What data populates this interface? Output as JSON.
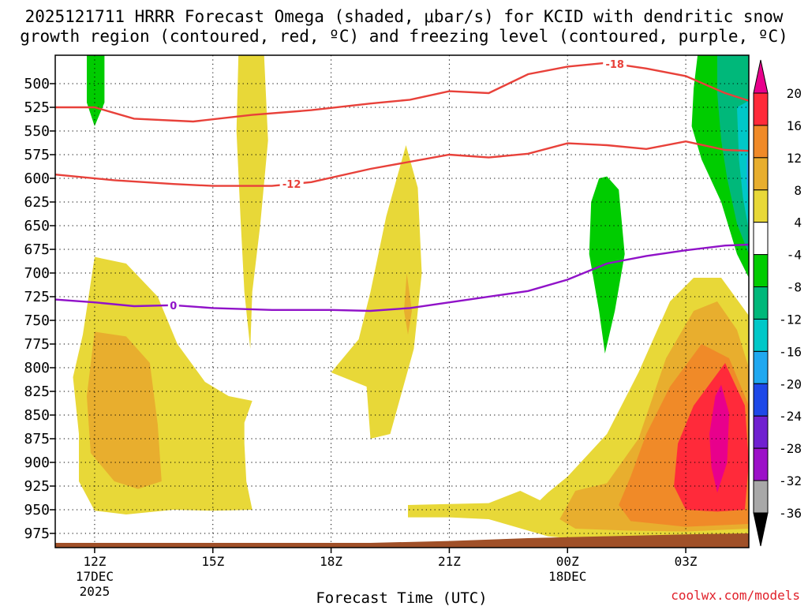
{
  "title_line1": "2025121711 HRRR Forecast Omega (shaded, μbar/s) for KCID with dendritic snow",
  "title_line2": "growth region (contoured, red, ºC) and freezing level (contoured, purple, ºC)",
  "watermark": "coolwx.com/models",
  "chart_data": {
    "type": "heatmap",
    "title": "2025121711 HRRR Forecast Omega (shaded, μbar/s) for KCID with dendritic snow growth region (contoured, red, ºC) and freezing level (contoured, purple, ºC)",
    "xlabel": "Forecast Time (UTC)",
    "ylabel": "",
    "x_range_hours": [
      11,
      28.6
    ],
    "y_range_mb": [
      470,
      990
    ],
    "y_ticks": [
      500,
      525,
      550,
      575,
      600,
      625,
      650,
      675,
      700,
      725,
      750,
      775,
      800,
      825,
      850,
      875,
      900,
      925,
      950,
      975
    ],
    "x_ticks": [
      {
        "hour": 12,
        "label": "12Z",
        "sub1": "17DEC",
        "sub2": "2025"
      },
      {
        "hour": 15,
        "label": "15Z",
        "sub1": "",
        "sub2": ""
      },
      {
        "hour": 18,
        "label": "18Z",
        "sub1": "",
        "sub2": ""
      },
      {
        "hour": 21,
        "label": "21Z",
        "sub1": "",
        "sub2": ""
      },
      {
        "hour": 24,
        "label": "00Z",
        "sub1": "18DEC",
        "sub2": ""
      },
      {
        "hour": 27,
        "label": "03Z",
        "sub1": "",
        "sub2": ""
      }
    ],
    "grid": true,
    "colorbar": {
      "bounds": [
        20,
        16,
        12,
        8,
        4,
        -4,
        -8,
        -12,
        -16,
        -20,
        -24,
        -28,
        -32,
        -36
      ],
      "fills": [
        "#f8f800",
        "#ff2a3a",
        "#ff5a3a",
        "#f08a28",
        "#e8ae2e",
        "#e8d838",
        "#ffffff",
        "#00cc00",
        "#00b87a",
        "#00c8c8",
        "#20a8f0",
        "#1e48e8",
        "#7020d0",
        "#9c10c8",
        "#a8a8a8"
      ],
      "top_cap": "#e8008c",
      "bottom_cap": "#000000"
    },
    "contours": [
      {
        "name": "dendritic-top",
        "label": "-18",
        "color": "#e8413a",
        "points": [
          [
            11,
            525
          ],
          [
            12,
            525
          ],
          [
            13,
            537
          ],
          [
            14.5,
            540
          ],
          [
            16,
            533
          ],
          [
            17.5,
            528
          ],
          [
            19,
            521
          ],
          [
            20,
            517
          ],
          [
            21,
            508
          ],
          [
            22,
            510
          ],
          [
            23,
            490
          ],
          [
            24,
            482
          ],
          [
            25,
            478
          ],
          [
            26,
            484
          ],
          [
            27,
            492
          ],
          [
            28,
            510
          ],
          [
            28.6,
            518
          ]
        ]
      },
      {
        "name": "dendritic-bottom",
        "label": "-12",
        "color": "#e8413a",
        "points": [
          [
            11,
            596
          ],
          [
            12.5,
            602
          ],
          [
            14,
            606
          ],
          [
            15,
            608
          ],
          [
            16.5,
            608
          ],
          [
            17.5,
            604
          ],
          [
            19,
            590
          ],
          [
            21,
            575
          ],
          [
            22,
            578
          ],
          [
            23,
            574
          ],
          [
            24,
            563
          ],
          [
            25,
            565
          ],
          [
            26,
            569
          ],
          [
            27,
            561
          ],
          [
            28,
            570
          ],
          [
            28.6,
            571
          ]
        ]
      },
      {
        "name": "freezing-level",
        "label": "0",
        "color": "#9012c8",
        "points": [
          [
            11,
            728
          ],
          [
            12,
            731
          ],
          [
            13,
            735
          ],
          [
            14,
            734
          ],
          [
            15,
            737
          ],
          [
            16.5,
            739
          ],
          [
            18,
            739
          ],
          [
            19,
            740
          ],
          [
            20,
            737
          ],
          [
            21,
            731
          ],
          [
            23,
            719
          ],
          [
            24,
            707
          ],
          [
            25,
            690
          ],
          [
            26,
            682
          ],
          [
            27,
            676
          ],
          [
            28,
            671
          ],
          [
            28.6,
            670
          ]
        ]
      }
    ],
    "omega_regions": [
      {
        "name": "green-cell-12z",
        "value_range": [
          -8,
          -4
        ],
        "color": "#00cc00",
        "points": [
          [
            11.8,
            470
          ],
          [
            12.25,
            470
          ],
          [
            12.25,
            520
          ],
          [
            12.0,
            545
          ],
          [
            11.8,
            520
          ]
        ]
      },
      {
        "name": "yellow-column-16z",
        "value_range": [
          4,
          8
        ],
        "color": "#e8d838",
        "points": [
          [
            15.65,
            470
          ],
          [
            16.3,
            470
          ],
          [
            16.4,
            560
          ],
          [
            16.2,
            650
          ],
          [
            16.0,
            720
          ],
          [
            15.95,
            780
          ],
          [
            15.8,
            720
          ],
          [
            15.7,
            640
          ],
          [
            15.6,
            550
          ]
        ]
      },
      {
        "name": "yellow-cell-20z",
        "value_range": [
          4,
          8
        ],
        "color": "#e8d838",
        "points": [
          [
            19.9,
            565
          ],
          [
            20.2,
            610
          ],
          [
            20.3,
            700
          ],
          [
            20.1,
            780
          ],
          [
            19.5,
            870
          ],
          [
            19.0,
            875
          ],
          [
            18.9,
            820
          ],
          [
            18.0,
            805
          ],
          [
            18.7,
            770
          ],
          [
            19.0,
            720
          ],
          [
            19.4,
            640
          ]
        ]
      },
      {
        "name": "orange-cell-20z",
        "value_range": [
          8,
          12
        ],
        "color": "#e8ae2e",
        "points": [
          [
            19.92,
            700
          ],
          [
            20.05,
            740
          ],
          [
            19.95,
            765
          ],
          [
            19.85,
            740
          ]
        ]
      },
      {
        "name": "yellow-lower-12z",
        "value_range": [
          4,
          8
        ],
        "color": "#e8d838",
        "points": [
          [
            12,
            683
          ],
          [
            12.8,
            690
          ],
          [
            13.6,
            725
          ],
          [
            14.1,
            775
          ],
          [
            14.8,
            815
          ],
          [
            15.4,
            830
          ],
          [
            16.0,
            835
          ],
          [
            15.8,
            858
          ],
          [
            15.8,
            880
          ],
          [
            15.85,
            920
          ],
          [
            16,
            950
          ],
          [
            15,
            951
          ],
          [
            14,
            950
          ],
          [
            12.8,
            955
          ],
          [
            12,
            951
          ],
          [
            11.6,
            920
          ],
          [
            11.6,
            870
          ],
          [
            11.45,
            810
          ],
          [
            11.7,
            765
          ]
        ]
      },
      {
        "name": "orange-lower-12z",
        "value_range": [
          8,
          12
        ],
        "color": "#e8ae2e",
        "points": [
          [
            12.0,
            762
          ],
          [
            12.8,
            767
          ],
          [
            13.4,
            795
          ],
          [
            13.6,
            860
          ],
          [
            13.7,
            920
          ],
          [
            13.1,
            928
          ],
          [
            12.5,
            920
          ],
          [
            11.9,
            890
          ],
          [
            11.8,
            830
          ]
        ]
      },
      {
        "name": "yellow-surface-band",
        "value_range": [
          4,
          8
        ],
        "color": "#e8d838",
        "points": [
          [
            19.95,
            945
          ],
          [
            21,
            944
          ],
          [
            22,
            943
          ],
          [
            22.8,
            930
          ],
          [
            23.3,
            940
          ],
          [
            23.5,
            932
          ],
          [
            24,
            915
          ],
          [
            25,
            870
          ],
          [
            25.8,
            805
          ],
          [
            26.6,
            730
          ],
          [
            27.2,
            705
          ],
          [
            27.9,
            705
          ],
          [
            28.6,
            745
          ],
          [
            28.6,
            980
          ],
          [
            27,
            982
          ],
          [
            25,
            982
          ],
          [
            24,
            980
          ],
          [
            23.5,
            978
          ],
          [
            22,
            960
          ],
          [
            21,
            958
          ],
          [
            19.95,
            958
          ]
        ]
      },
      {
        "name": "orange-surface-band",
        "value_range": [
          8,
          12
        ],
        "color": "#e8ae2e",
        "points": [
          [
            23.8,
            960
          ],
          [
            24.2,
            930
          ],
          [
            25,
            922
          ],
          [
            25.8,
            875
          ],
          [
            26.5,
            790
          ],
          [
            27.2,
            740
          ],
          [
            27.8,
            730
          ],
          [
            28.3,
            760
          ],
          [
            28.6,
            800
          ],
          [
            28.6,
            970
          ],
          [
            27,
            973
          ],
          [
            25.5,
            972
          ],
          [
            24.2,
            970
          ]
        ]
      },
      {
        "name": "dark-orange-cell",
        "value_range": [
          12,
          16
        ],
        "color": "#f08a28",
        "points": [
          [
            25.3,
            945
          ],
          [
            25.6,
            915
          ],
          [
            26.0,
            870
          ],
          [
            26.6,
            820
          ],
          [
            27.4,
            775
          ],
          [
            28.1,
            790
          ],
          [
            28.6,
            840
          ],
          [
            28.6,
            965
          ],
          [
            27,
            968
          ],
          [
            25.6,
            962
          ]
        ]
      },
      {
        "name": "red-cell",
        "value_range": [
          16,
          20
        ],
        "color": "#ff2a3a",
        "points": [
          [
            26.7,
            925
          ],
          [
            26.8,
            880
          ],
          [
            27.2,
            840
          ],
          [
            28.0,
            795
          ],
          [
            28.5,
            840
          ],
          [
            28.6,
            900
          ],
          [
            28.5,
            950
          ],
          [
            27.8,
            952
          ],
          [
            27.0,
            950
          ]
        ]
      },
      {
        "name": "magenta-core",
        "value_range": [
          20,
          24
        ],
        "color": "#e8008c",
        "points": [
          [
            27.6,
            870
          ],
          [
            27.75,
            830
          ],
          [
            27.9,
            818
          ],
          [
            28.1,
            848
          ],
          [
            28.05,
            900
          ],
          [
            27.8,
            932
          ],
          [
            27.65,
            905
          ]
        ]
      },
      {
        "name": "green-cell-00z",
        "value_range": [
          -8,
          -4
        ],
        "color": "#00cc00",
        "points": [
          [
            24.6,
            625
          ],
          [
            24.8,
            600
          ],
          [
            25.0,
            598
          ],
          [
            25.3,
            612
          ],
          [
            25.45,
            680
          ],
          [
            25.2,
            740
          ],
          [
            24.95,
            785
          ],
          [
            24.8,
            740
          ],
          [
            24.55,
            680
          ]
        ]
      },
      {
        "name": "green-cell-03z",
        "value_range": [
          -8,
          -4
        ],
        "color": "#00cc00",
        "points": [
          [
            27.3,
            470
          ],
          [
            28.6,
            470
          ],
          [
            28.6,
            705
          ],
          [
            28.3,
            680
          ],
          [
            27.9,
            625
          ],
          [
            27.4,
            580
          ],
          [
            27.15,
            545
          ],
          [
            27.2,
            505
          ]
        ]
      },
      {
        "name": "teal-cell-03z",
        "value_range": [
          -12,
          -8
        ],
        "color": "#00b87a",
        "points": [
          [
            27.8,
            470
          ],
          [
            28.6,
            470
          ],
          [
            28.6,
            680
          ],
          [
            28.3,
            648
          ],
          [
            28.05,
            600
          ],
          [
            27.9,
            560
          ],
          [
            27.8,
            510
          ]
        ]
      },
      {
        "name": "cyan-cell-03z",
        "value_range": [
          -16,
          -12
        ],
        "color": "#00c8c8",
        "points": [
          [
            28.3,
            525
          ],
          [
            28.6,
            518
          ],
          [
            28.6,
            655
          ],
          [
            28.45,
            620
          ],
          [
            28.35,
            580
          ]
        ]
      },
      {
        "name": "blue-cell-03z",
        "value_range": [
          -20,
          -16
        ],
        "color": "#20a8f0",
        "points": [
          [
            28.55,
            580
          ],
          [
            28.6,
            570
          ],
          [
            28.6,
            625
          ],
          [
            28.55,
            605
          ]
        ]
      }
    ],
    "terrain": {
      "name": "ground",
      "color": "#a05028",
      "points": [
        [
          11,
          985
        ],
        [
          19,
          985
        ],
        [
          21,
          983
        ],
        [
          23,
          980
        ],
        [
          25,
          978
        ],
        [
          27,
          976
        ],
        [
          28.6,
          975
        ],
        [
          28.6,
          990
        ],
        [
          11,
          990
        ]
      ]
    }
  }
}
